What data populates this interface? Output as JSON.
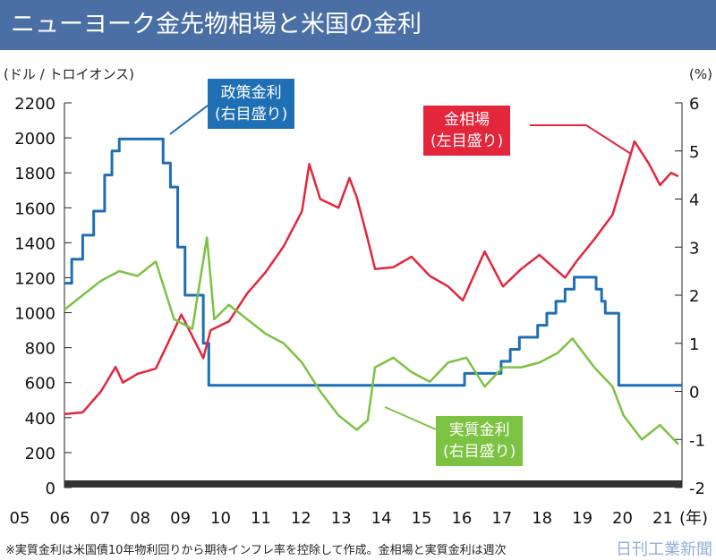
{
  "title": "ニューヨーク金先物相場と米国の金利",
  "footnote": "※実質金利は米国債10年物利回りから期待インフレ率を控除して作成。金相場と実質金利は週次",
  "logo": "日刊工業新聞",
  "chart_data": {
    "type": "line",
    "title": "ニューヨーク金先物相場と米国の金利",
    "ylabel_left": "(ドル / トロイオンス)",
    "ylabel_right": "(%)",
    "xlabel": "(年)",
    "xlim": [
      2005,
      2021.9
    ],
    "ylim_left": [
      0,
      2200
    ],
    "ylim_right": [
      -2,
      6
    ],
    "yticks_left": [
      0,
      200,
      400,
      600,
      800,
      1000,
      1200,
      1400,
      1600,
      1800,
      2000,
      2200
    ],
    "yticks_right": [
      -2,
      -1,
      0,
      1,
      2,
      3,
      4,
      5,
      6
    ],
    "xtick_labels": [
      "05",
      "06",
      "07",
      "08",
      "09",
      "10",
      "11",
      "12",
      "13",
      "14",
      "15",
      "16",
      "17",
      "18",
      "19",
      "20",
      "21"
    ],
    "colors": {
      "gold": "#e3263c",
      "policy": "#1f6fb5",
      "real": "#7cc243"
    },
    "series": [
      {
        "key": "gold",
        "name": "金相場",
        "sub": "(左目盛り)",
        "axis": "left",
        "points": [
          [
            2005,
            420
          ],
          [
            2005.5,
            430
          ],
          [
            2006,
            550
          ],
          [
            2006.4,
            690
          ],
          [
            2006.6,
            600
          ],
          [
            2007,
            650
          ],
          [
            2007.5,
            680
          ],
          [
            2008,
            900
          ],
          [
            2008.2,
            990
          ],
          [
            2008.8,
            740
          ],
          [
            2009,
            900
          ],
          [
            2009.5,
            950
          ],
          [
            2010,
            1110
          ],
          [
            2010.5,
            1230
          ],
          [
            2011,
            1380
          ],
          [
            2011.5,
            1580
          ],
          [
            2011.7,
            1850
          ],
          [
            2012,
            1650
          ],
          [
            2012.5,
            1600
          ],
          [
            2012.8,
            1770
          ],
          [
            2013,
            1660
          ],
          [
            2013.3,
            1420
          ],
          [
            2013.5,
            1250
          ],
          [
            2014,
            1260
          ],
          [
            2014.5,
            1320
          ],
          [
            2015,
            1210
          ],
          [
            2015.5,
            1150
          ],
          [
            2015.9,
            1070
          ],
          [
            2016.5,
            1350
          ],
          [
            2017,
            1150
          ],
          [
            2017.5,
            1250
          ],
          [
            2018,
            1330
          ],
          [
            2018.7,
            1200
          ],
          [
            2019,
            1290
          ],
          [
            2019.5,
            1420
          ],
          [
            2020,
            1560
          ],
          [
            2020.6,
            1980
          ],
          [
            2021,
            1850
          ],
          [
            2021.3,
            1730
          ],
          [
            2021.6,
            1800
          ],
          [
            2021.8,
            1780
          ]
        ]
      },
      {
        "key": "policy",
        "name": "政策金利",
        "sub": "(右目盛り)",
        "axis": "right",
        "step": true,
        "points": [
          [
            2005,
            2.25
          ],
          [
            2005.2,
            2.75
          ],
          [
            2005.5,
            3.25
          ],
          [
            2005.8,
            3.75
          ],
          [
            2006.1,
            4.5
          ],
          [
            2006.3,
            5.0
          ],
          [
            2006.5,
            5.25
          ],
          [
            2007.7,
            4.75
          ],
          [
            2007.9,
            4.25
          ],
          [
            2008.1,
            3.0
          ],
          [
            2008.3,
            2.0
          ],
          [
            2008.8,
            1.0
          ],
          [
            2008.95,
            0.125
          ],
          [
            2015.95,
            0.375
          ],
          [
            2016.95,
            0.625
          ],
          [
            2017.2,
            0.875
          ],
          [
            2017.45,
            1.125
          ],
          [
            2017.95,
            1.375
          ],
          [
            2018.2,
            1.625
          ],
          [
            2018.45,
            1.875
          ],
          [
            2018.7,
            2.125
          ],
          [
            2018.95,
            2.375
          ],
          [
            2019.55,
            2.125
          ],
          [
            2019.7,
            1.875
          ],
          [
            2019.8,
            1.625
          ],
          [
            2020.17,
            0.125
          ],
          [
            2021.9,
            0.125
          ]
        ]
      },
      {
        "key": "real",
        "name": "実質金利",
        "sub": "(右目盛り)",
        "axis": "right",
        "points": [
          [
            2005,
            1.7
          ],
          [
            2005.5,
            2.0
          ],
          [
            2006,
            2.3
          ],
          [
            2006.5,
            2.5
          ],
          [
            2007,
            2.4
          ],
          [
            2007.5,
            2.7
          ],
          [
            2008,
            1.5
          ],
          [
            2008.5,
            1.3
          ],
          [
            2008.9,
            3.2
          ],
          [
            2009.1,
            1.5
          ],
          [
            2009.5,
            1.8
          ],
          [
            2010,
            1.5
          ],
          [
            2010.5,
            1.2
          ],
          [
            2011,
            1.0
          ],
          [
            2011.5,
            0.6
          ],
          [
            2012,
            0.0
          ],
          [
            2012.5,
            -0.5
          ],
          [
            2013,
            -0.8
          ],
          [
            2013.3,
            -0.6
          ],
          [
            2013.5,
            0.5
          ],
          [
            2014,
            0.7
          ],
          [
            2014.5,
            0.4
          ],
          [
            2015,
            0.2
          ],
          [
            2015.5,
            0.6
          ],
          [
            2016,
            0.7
          ],
          [
            2016.5,
            0.1
          ],
          [
            2017,
            0.5
          ],
          [
            2017.5,
            0.5
          ],
          [
            2018,
            0.6
          ],
          [
            2018.5,
            0.8
          ],
          [
            2018.9,
            1.1
          ],
          [
            2019.5,
            0.5
          ],
          [
            2020,
            0.1
          ],
          [
            2020.3,
            -0.5
          ],
          [
            2020.8,
            -1.0
          ],
          [
            2021.3,
            -0.7
          ],
          [
            2021.8,
            -1.1
          ]
        ]
      }
    ]
  }
}
